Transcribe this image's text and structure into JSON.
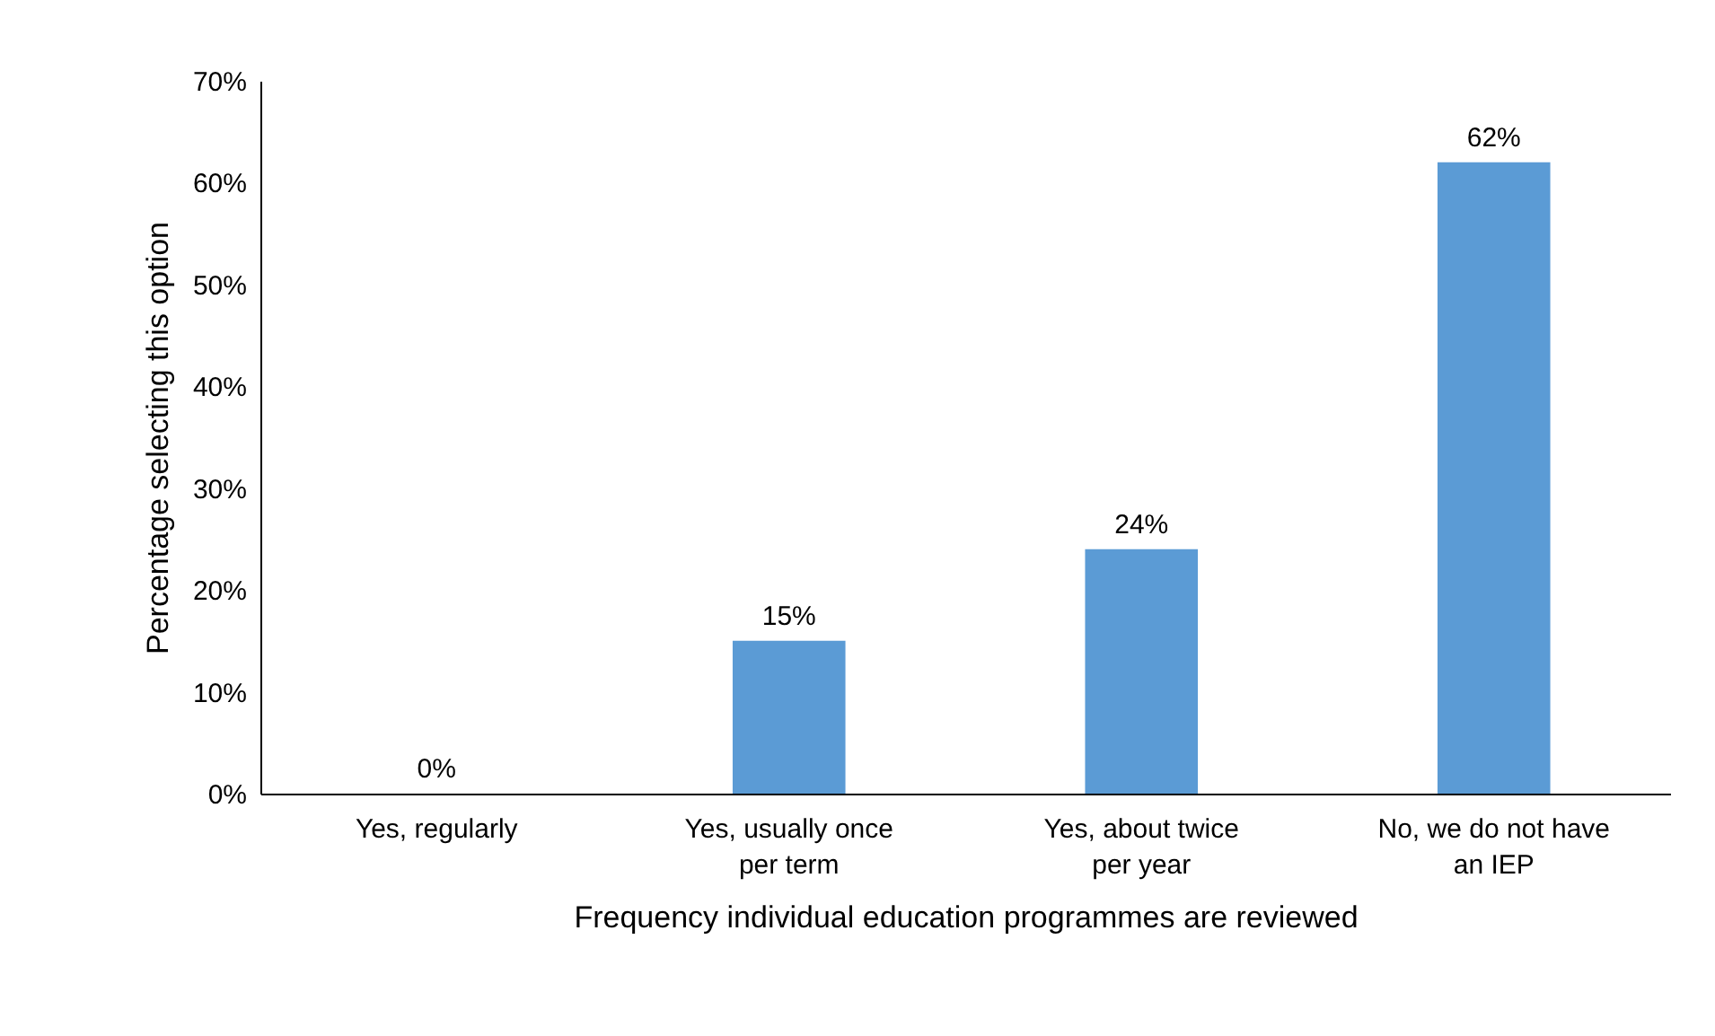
{
  "chart_data": {
    "type": "bar",
    "xlabel": "Frequency individual education programmes are reviewed",
    "ylabel": "Percentage selecting this option",
    "categories": [
      "Yes, regularly",
      "Yes, usually once per term",
      "Yes, about twice per year",
      "No, we do not have an IEP"
    ],
    "values": [
      0,
      15,
      24,
      62
    ],
    "value_labels": [
      "0%",
      "15%",
      "24%",
      "62%"
    ],
    "color": "#5b9bd5",
    "ylim": [
      0,
      70
    ],
    "yticks": [
      {
        "value": 0,
        "label": "0%"
      },
      {
        "value": 10,
        "label": "10%"
      },
      {
        "value": 20,
        "label": "20%"
      },
      {
        "value": 30,
        "label": "30%"
      },
      {
        "value": 40,
        "label": "40%"
      },
      {
        "value": 50,
        "label": "50%"
      },
      {
        "value": 60,
        "label": "60%"
      },
      {
        "value": 70,
        "label": "70%"
      }
    ],
    "grid": false
  }
}
